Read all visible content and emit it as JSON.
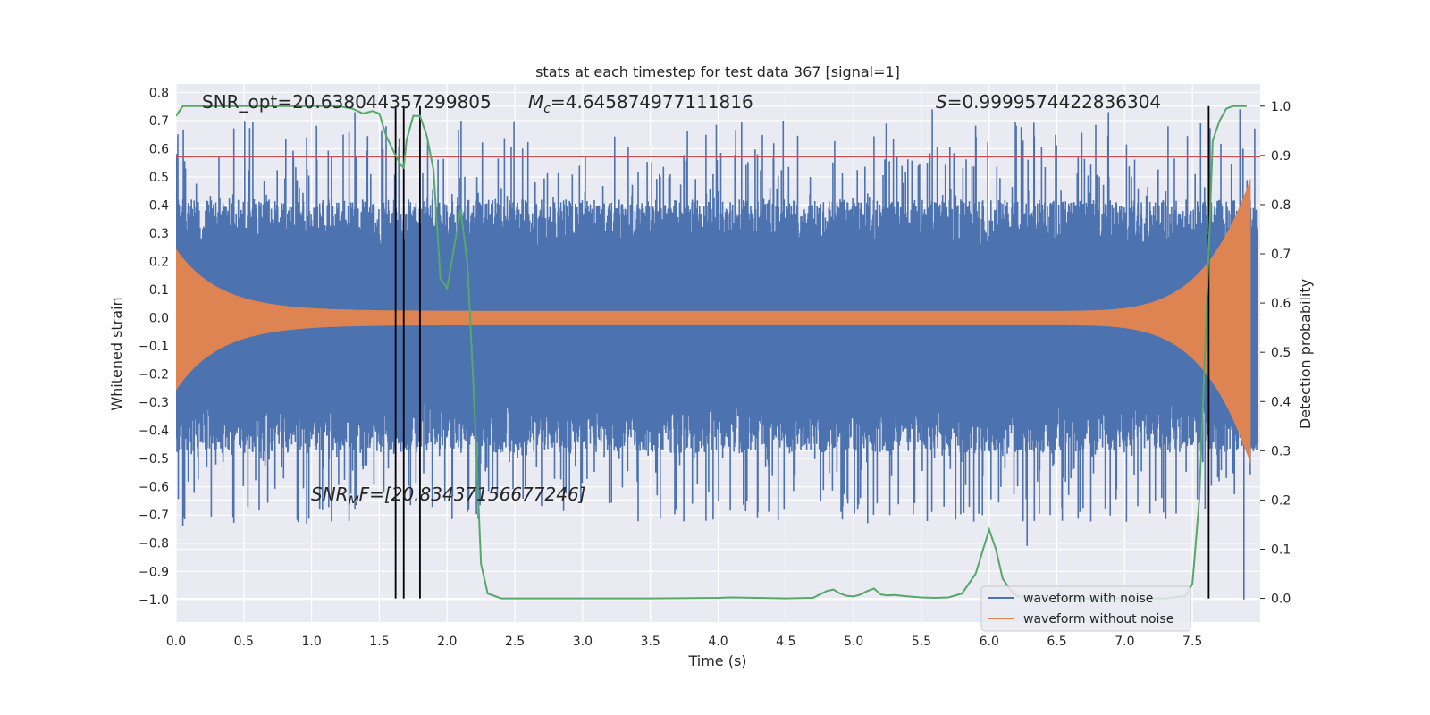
{
  "chart_data": {
    "type": "line",
    "title": "stats at each timestep for test data 367 [signal=1]",
    "xlabel": "Time (s)",
    "ylabel": "Whitened strain",
    "y2label": "Detection probability",
    "xlim": [
      0,
      8
    ],
    "ylim": [
      -1.08,
      0.83
    ],
    "y2lim": [
      -0.048,
      1.045
    ],
    "xticks": [
      "0.0",
      "0.5",
      "1.0",
      "1.5",
      "2.0",
      "2.5",
      "3.0",
      "3.5",
      "4.0",
      "4.5",
      "5.0",
      "5.5",
      "6.0",
      "6.5",
      "7.0",
      "7.5"
    ],
    "yticks": [
      "0.8",
      "0.7",
      "0.6",
      "0.5",
      "0.4",
      "0.3",
      "0.2",
      "0.1",
      "0.0",
      "−0.1",
      "−0.2",
      "−0.3",
      "−0.4",
      "−0.5",
      "−0.6",
      "−0.7",
      "−0.8",
      "−0.9",
      "−1.0"
    ],
    "y2ticks": [
      "1.0",
      "0.9",
      "0.8",
      "0.7",
      "0.6",
      "0.5",
      "0.4",
      "0.3",
      "0.2",
      "0.1",
      "0.0"
    ],
    "grid": true,
    "legend_position": "lower-right",
    "annotations": {
      "snr_opt": "SNR_opt=20.638044357299805",
      "mc_symbol": "M",
      "mc_sub": "c",
      "mc_value": "=4.645874977111816",
      "s_symbol": "S",
      "s_value": "=0.9999574422836304",
      "snr_mf_symbol": "SNR",
      "snr_mf_sub": "M",
      "snr_mf_value": "F=[20.83437156677246]"
    },
    "threshold_strain": 0.572,
    "vertical_lines_s": [
      1.62,
      1.68,
      1.8,
      7.62
    ],
    "series": [
      {
        "name": "waveform with noise",
        "color": "#4c72b0",
        "envelope": "noise"
      },
      {
        "name": "waveform without noise",
        "color": "#dd8452",
        "envelope": "chirp"
      },
      {
        "color": "#55a868",
        "axis": "right",
        "x": [
          0.0,
          0.05,
          0.1,
          0.2,
          0.4,
          0.6,
          0.8,
          1.0,
          1.2,
          1.3,
          1.38,
          1.45,
          1.5,
          1.55,
          1.62,
          1.66,
          1.68,
          1.7,
          1.75,
          1.8,
          1.85,
          1.9,
          1.95,
          2.0,
          2.05,
          2.1,
          2.15,
          2.2,
          2.25,
          2.3,
          2.4,
          2.6,
          3.0,
          3.5,
          4.0,
          4.1,
          4.5,
          4.7,
          4.75,
          4.8,
          4.85,
          4.9,
          4.95,
          5.0,
          5.05,
          5.1,
          5.15,
          5.2,
          5.25,
          5.3,
          5.4,
          5.5,
          5.6,
          5.7,
          5.8,
          5.9,
          6.0,
          6.05,
          6.1,
          6.15,
          6.2,
          6.25,
          6.3,
          6.4,
          6.5,
          7.0,
          7.3,
          7.45,
          7.5,
          7.55,
          7.6,
          7.65,
          7.7,
          7.75,
          7.8,
          7.85,
          7.9
        ],
        "values": [
          0.98,
          1.0,
          1.0,
          1.0,
          1.0,
          1.0,
          1.0,
          1.0,
          1.0,
          0.995,
          0.985,
          0.99,
          0.985,
          0.94,
          0.9,
          0.88,
          0.875,
          0.93,
          0.98,
          0.98,
          0.94,
          0.87,
          0.65,
          0.63,
          0.71,
          0.79,
          0.68,
          0.4,
          0.07,
          0.01,
          0.0,
          0.0,
          0.0,
          0.0,
          0.001,
          0.002,
          0.0,
          0.001,
          0.008,
          0.015,
          0.018,
          0.01,
          0.005,
          0.004,
          0.008,
          0.015,
          0.02,
          0.008,
          0.006,
          0.007,
          0.004,
          0.002,
          0.001,
          0.002,
          0.01,
          0.05,
          0.14,
          0.1,
          0.04,
          0.02,
          0.005,
          0.002,
          0.0,
          0.0,
          0.0,
          0.0,
          0.0,
          0.005,
          0.03,
          0.2,
          0.55,
          0.93,
          0.97,
          0.995,
          1.0,
          1.0,
          1.0
        ]
      }
    ]
  },
  "legend": {
    "items": [
      {
        "label": "waveform with noise",
        "color": "#4c72b0"
      },
      {
        "label": "waveform without noise",
        "color": "#dd8452"
      }
    ]
  }
}
